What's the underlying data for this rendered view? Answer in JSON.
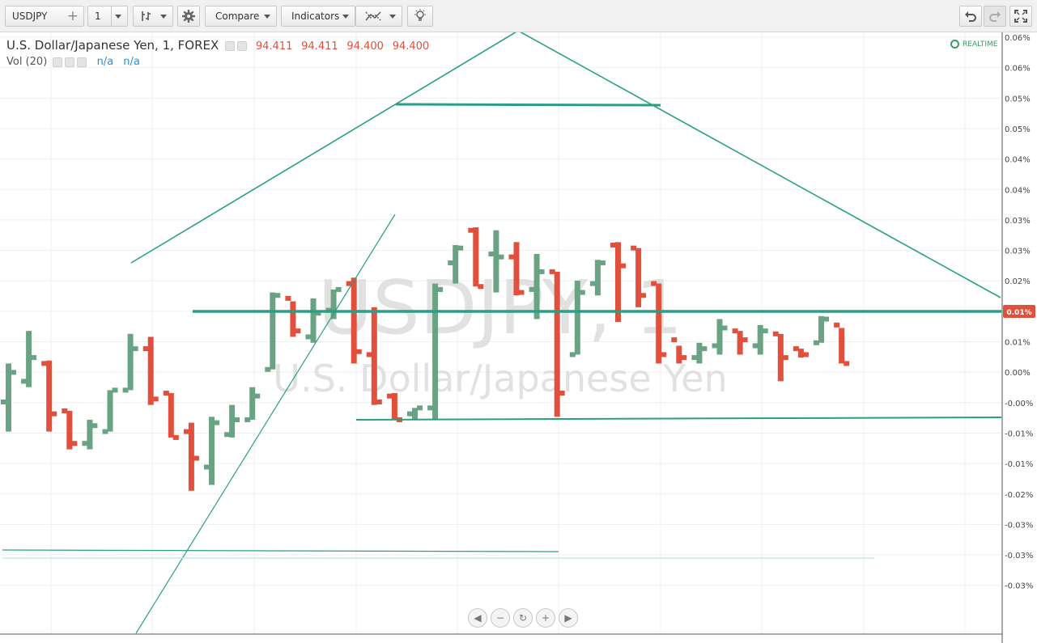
{
  "toolbar": {
    "symbol": "USDJPY",
    "interval": "1",
    "compare_label": "Compare",
    "indicators_label": "Indicators"
  },
  "legend": {
    "title": "U.S. Dollar/Japanese Yen, 1, FOREX",
    "open": "94.411",
    "high": "94.411",
    "low": "94.400",
    "close": "94.400",
    "vol_label": "Vol (20)",
    "vol_value1": "n/a",
    "vol_value2": "n/a"
  },
  "realtime_label": "REALTIME",
  "watermark": {
    "symbol": "USDJPY, 1",
    "name": "U.S. Dollar/Japanese Yen"
  },
  "current_price_label": "0.01%",
  "y_axis_labels": [
    "0.06%",
    "0.06%",
    "0.05%",
    "0.05%",
    "0.04%",
    "0.04%",
    "0.03%",
    "0.03%",
    "0.02%",
    "0.01%",
    "0.01%",
    "0.00%",
    "-0.00%",
    "-0.01%",
    "-0.01%",
    "-0.02%",
    "-0.03%",
    "-0.03%",
    "-0.03%"
  ],
  "colors": {
    "up": "#6aa384",
    "down": "#e0503c",
    "drawing": "#2b9e84",
    "accent": "#e0503c"
  },
  "icons": [
    "plus-icon",
    "chevron-down-icon",
    "bar-style-icon",
    "gear-icon",
    "indicator-icon",
    "lightbulb-icon",
    "undo-icon",
    "redo-icon",
    "fullscreen-icon",
    "clock-icon",
    "scroll-left-icon",
    "zoom-out-icon",
    "reset-icon",
    "zoom-in-icon",
    "scroll-right-icon"
  ],
  "chart_data": {
    "type": "ohlc",
    "y_unit": "%",
    "bars": [
      {
        "o": 0.0,
        "h": 0.013,
        "l": -0.01,
        "c": 0.01,
        "dir": "up"
      },
      {
        "o": 0.007,
        "h": 0.024,
        "l": 0.005,
        "c": 0.015,
        "dir": "up"
      },
      {
        "o": 0.013,
        "h": 0.014,
        "l": -0.01,
        "c": -0.004,
        "dir": "down"
      },
      {
        "o": -0.003,
        "h": -0.003,
        "l": -0.016,
        "c": -0.014,
        "dir": "down"
      },
      {
        "o": -0.014,
        "h": -0.006,
        "l": -0.016,
        "c": -0.008,
        "dir": "up"
      },
      {
        "o": -0.01,
        "h": 0.004,
        "l": -0.01,
        "c": 0.004,
        "dir": "up"
      },
      {
        "o": 0.004,
        "h": 0.023,
        "l": 0.004,
        "c": 0.018,
        "dir": "up"
      },
      {
        "o": 0.018,
        "h": 0.022,
        "l": -0.001,
        "c": 0.001,
        "dir": "down"
      },
      {
        "o": 0.003,
        "h": 0.003,
        "l": -0.012,
        "c": -0.012,
        "dir": "down"
      },
      {
        "o": -0.01,
        "h": -0.007,
        "l": -0.03,
        "c": -0.019,
        "dir": "down"
      },
      {
        "o": -0.022,
        "h": -0.005,
        "l": -0.028,
        "c": -0.007,
        "dir": "up"
      },
      {
        "o": -0.011,
        "h": -0.001,
        "l": -0.012,
        "c": -0.006,
        "dir": "up"
      },
      {
        "o": -0.006,
        "h": 0.005,
        "l": -0.006,
        "c": 0.002,
        "dir": "up"
      },
      {
        "o": 0.011,
        "h": 0.037,
        "l": 0.011,
        "c": 0.036,
        "dir": "up"
      },
      {
        "o": 0.035,
        "h": 0.034,
        "l": 0.022,
        "c": 0.024,
        "dir": "down"
      },
      {
        "o": 0.022,
        "h": 0.035,
        "l": 0.02,
        "c": 0.03,
        "dir": "up"
      },
      {
        "o": 0.031,
        "h": 0.038,
        "l": 0.028,
        "c": 0.038,
        "dir": "up"
      },
      {
        "o": 0.04,
        "h": 0.042,
        "l": 0.013,
        "c": 0.017,
        "dir": "down"
      },
      {
        "o": 0.016,
        "h": 0.032,
        "l": -0.001,
        "c": 0.0,
        "dir": "down"
      },
      {
        "o": 0.002,
        "h": 0.003,
        "l": -0.006,
        "c": -0.006,
        "dir": "down"
      },
      {
        "o": -0.004,
        "h": -0.002,
        "l": -0.006,
        "c": -0.002,
        "dir": "up"
      },
      {
        "o": -0.002,
        "h": 0.04,
        "l": -0.006,
        "c": 0.038,
        "dir": "up"
      },
      {
        "o": 0.047,
        "h": 0.053,
        "l": 0.04,
        "c": 0.052,
        "dir": "up"
      },
      {
        "o": 0.058,
        "h": 0.059,
        "l": 0.039,
        "c": 0.039,
        "dir": "down"
      },
      {
        "o": 0.05,
        "h": 0.058,
        "l": 0.037,
        "c": 0.049,
        "dir": "up"
      },
      {
        "o": 0.049,
        "h": 0.054,
        "l": 0.036,
        "c": 0.037,
        "dir": "down"
      },
      {
        "o": 0.038,
        "h": 0.05,
        "l": 0.028,
        "c": 0.044,
        "dir": "up"
      },
      {
        "o": 0.044,
        "h": 0.044,
        "l": -0.005,
        "c": 0.003,
        "dir": "down"
      },
      {
        "o": 0.016,
        "h": 0.041,
        "l": 0.016,
        "c": 0.037,
        "dir": "up"
      },
      {
        "o": 0.04,
        "h": 0.048,
        "l": 0.036,
        "c": 0.047,
        "dir": "up"
      },
      {
        "o": 0.053,
        "h": 0.054,
        "l": 0.027,
        "c": 0.046,
        "dir": "down"
      },
      {
        "o": 0.052,
        "h": 0.052,
        "l": 0.032,
        "c": 0.036,
        "dir": "down"
      },
      {
        "o": 0.04,
        "h": 0.04,
        "l": 0.013,
        "c": 0.016,
        "dir": "down"
      },
      {
        "o": 0.021,
        "h": 0.019,
        "l": 0.013,
        "c": 0.015,
        "dir": "down"
      },
      {
        "o": 0.015,
        "h": 0.02,
        "l": 0.013,
        "c": 0.018,
        "dir": "up"
      },
      {
        "o": 0.019,
        "h": 0.028,
        "l": 0.016,
        "c": 0.025,
        "dir": "up"
      },
      {
        "o": 0.024,
        "h": 0.024,
        "l": 0.016,
        "c": 0.021,
        "dir": "down"
      },
      {
        "o": 0.019,
        "h": 0.026,
        "l": 0.016,
        "c": 0.024,
        "dir": "up"
      },
      {
        "o": 0.023,
        "h": 0.023,
        "l": 0.007,
        "c": 0.015,
        "dir": "down"
      },
      {
        "o": 0.018,
        "h": 0.018,
        "l": 0.015,
        "c": 0.016,
        "dir": "down"
      },
      {
        "o": 0.02,
        "h": 0.029,
        "l": 0.02,
        "c": 0.028,
        "dir": "up"
      },
      {
        "o": 0.026,
        "h": 0.025,
        "l": 0.013,
        "c": 0.013,
        "dir": "down"
      }
    ]
  }
}
